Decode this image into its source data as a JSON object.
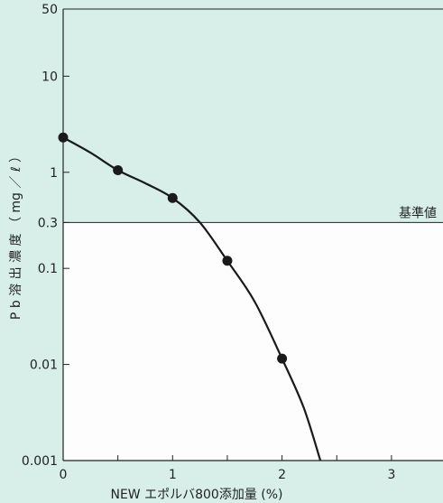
{
  "chart_data": {
    "type": "line",
    "xlabel": "NEW エポルバ800添加量 (%)",
    "ylabel": "P b 溶 出 濃 度 （ mg ／ ℓ ）",
    "xlim": [
      0,
      3.5
    ],
    "ylim": [
      0.001,
      50
    ],
    "y_scale": "log",
    "x_ticks": [
      {
        "value": 0,
        "label": "0"
      },
      {
        "value": 1,
        "label": "1"
      },
      {
        "value": 2,
        "label": "2"
      },
      {
        "value": 3,
        "label": "3"
      }
    ],
    "y_ticks": [
      {
        "value": 50,
        "label": "50"
      },
      {
        "value": 10,
        "label": "10"
      },
      {
        "value": 1,
        "label": "1"
      },
      {
        "value": 0.3,
        "label": "0.3"
      },
      {
        "value": 0.1,
        "label": "0.1"
      },
      {
        "value": 0.01,
        "label": "0.01"
      },
      {
        "value": 0.001,
        "label": "0.001"
      }
    ],
    "threshold": {
      "value": 0.3,
      "label": "基準値"
    },
    "series": [
      {
        "points": [
          {
            "x": 0,
            "y": 2.3
          },
          {
            "x": 0.5,
            "y": 1.05
          },
          {
            "x": 1.0,
            "y": 0.54
          },
          {
            "x": 1.5,
            "y": 0.12
          },
          {
            "x": 2.0,
            "y": 0.0115
          }
        ],
        "curve": [
          {
            "x": 0,
            "y": 2.3
          },
          {
            "x": 0.25,
            "y": 1.6
          },
          {
            "x": 0.5,
            "y": 1.05
          },
          {
            "x": 0.75,
            "y": 0.77
          },
          {
            "x": 1.0,
            "y": 0.54
          },
          {
            "x": 1.25,
            "y": 0.3
          },
          {
            "x": 1.5,
            "y": 0.12
          },
          {
            "x": 1.75,
            "y": 0.045
          },
          {
            "x": 2.0,
            "y": 0.0115
          },
          {
            "x": 2.2,
            "y": 0.0035
          },
          {
            "x": 2.35,
            "y": 0.001
          }
        ]
      }
    ],
    "colors": {
      "upper_band": "#d8efe9",
      "lower_band": "#fdfdfd",
      "line": "#1a1a1a"
    }
  }
}
